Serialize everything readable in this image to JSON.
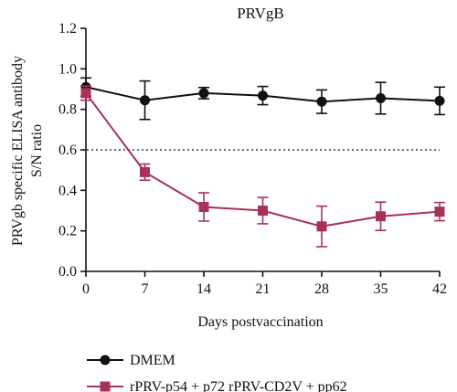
{
  "chart_data": {
    "type": "line",
    "title": "PRVgB",
    "xlabel": "Days postvaccination",
    "ylabel_line1": "PRVgb specific ELISA antibody",
    "ylabel_line2": "S/N  ratio",
    "x": [
      0,
      7,
      14,
      21,
      28,
      35,
      42
    ],
    "xlim": [
      0,
      42
    ],
    "ylim": [
      0.0,
      1.2
    ],
    "yticks": [
      "0.0",
      "0.2",
      "0.4",
      "0.6",
      "0.8",
      "1.0",
      "1.2"
    ],
    "xticks": [
      "0",
      "7",
      "14",
      "21",
      "28",
      "35",
      "42"
    ],
    "reference_line": 0.6,
    "grid": false,
    "legend_position": "bottom",
    "series": [
      {
        "name": "DMEM",
        "marker": "circle",
        "color": "#111111",
        "values": [
          0.91,
          0.845,
          0.88,
          0.868,
          0.838,
          0.855,
          0.842
        ],
        "errors": [
          0.045,
          0.095,
          0.028,
          0.045,
          0.058,
          0.078,
          0.068
        ]
      },
      {
        "name": "rPRV-p54 + p72 rPRV-CD2V + pp62",
        "marker": "square",
        "color": "#a83256",
        "values": [
          0.88,
          0.49,
          0.318,
          0.3,
          0.222,
          0.272,
          0.295
        ],
        "errors": [
          0.035,
          0.04,
          0.07,
          0.065,
          0.1,
          0.07,
          0.045
        ]
      }
    ]
  }
}
